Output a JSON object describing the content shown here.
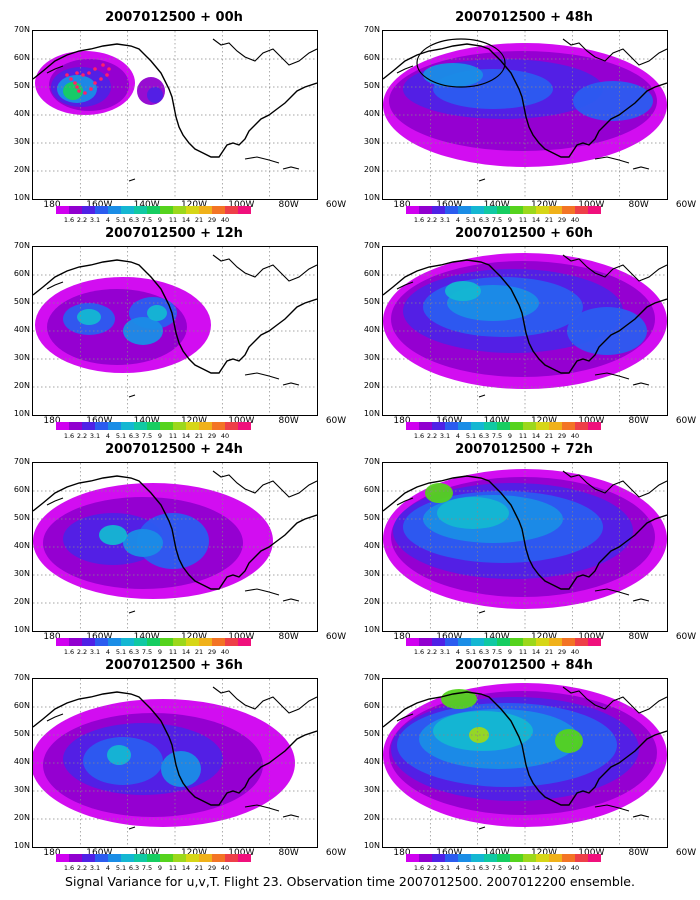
{
  "figure": {
    "caption": "Signal Variance for u,v,T. Flight 23. Observation time 2007012500. 2007012200 ensemble."
  },
  "panels": [
    {
      "title": "2007012500 + 00h"
    },
    {
      "title": "2007012500 + 12h"
    },
    {
      "title": "2007012500 + 24h"
    },
    {
      "title": "2007012500 + 36h"
    },
    {
      "title": "2007012500 + 48h"
    },
    {
      "title": "2007012500 + 60h"
    },
    {
      "title": "2007012500 + 72h"
    },
    {
      "title": "2007012500 + 84h"
    }
  ],
  "axes": {
    "lat_labels": [
      "70N",
      "60N",
      "50N",
      "40N",
      "30N",
      "20N",
      "10N"
    ],
    "lon_labels": [
      "180",
      "160W",
      "140W",
      "120W",
      "100W",
      "80W",
      "60W"
    ]
  },
  "colorbar": {
    "labels": [
      "1.6",
      "2.2",
      "3.1",
      "4",
      "5.1",
      "6.3",
      "7.5",
      "9",
      "11",
      "14",
      "21",
      "29",
      "40"
    ],
    "colors": [
      "#d000f0",
      "#9100cf",
      "#4f21e6",
      "#2b5cf0",
      "#1a8de6",
      "#14b7d2",
      "#10c9a3",
      "#16cd61",
      "#55d31e",
      "#9cd81c",
      "#d6d617",
      "#f0b11a",
      "#f37425",
      "#ee3f48",
      "#f0107c"
    ]
  }
}
